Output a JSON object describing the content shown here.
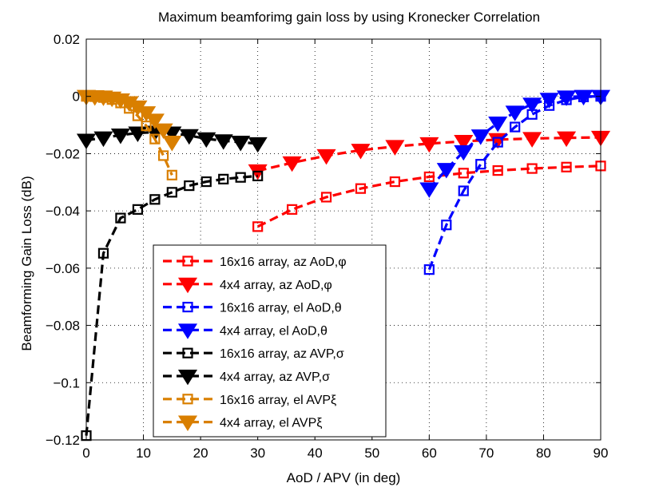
{
  "chart_data": {
    "type": "line",
    "title": "Maximum beamforimg gain loss by using Kronecker Correlation",
    "xlabel": "AoD / APV (in deg)",
    "ylabel": "Beamforming Gain Loss (dB)",
    "xlim": [
      0,
      90
    ],
    "ylim": [
      -0.12,
      0.02
    ],
    "xticks": [
      0,
      10,
      20,
      30,
      40,
      50,
      60,
      70,
      80,
      90
    ],
    "xtick_labels": [
      "0",
      "10",
      "20",
      "30",
      "40",
      "50",
      "60",
      "70",
      "80",
      "90"
    ],
    "yticks": [
      0.02,
      0,
      -0.02,
      -0.04,
      -0.06,
      -0.08,
      -0.1,
      -0.12
    ],
    "ytick_labels": [
      "0.02",
      "0",
      "−0.02",
      "−0.04",
      "−0.06",
      "−0.08",
      "−0.1",
      "−0.12"
    ],
    "grid": true,
    "legend_position": "lower-center",
    "series": [
      {
        "name": "16x16 array, az AoD,φ",
        "color": "#ff0000",
        "marker": "square",
        "x": [
          30,
          36,
          42,
          48,
          54,
          60,
          66,
          72,
          78,
          84,
          90
        ],
        "y": [
          -0.0455,
          -0.0395,
          -0.0352,
          -0.0322,
          -0.0298,
          -0.0281,
          -0.0268,
          -0.0259,
          -0.0252,
          -0.0247,
          -0.0243
        ]
      },
      {
        "name": "4x4 array, az AoD,φ",
        "color": "#ff0000",
        "marker": "triangle-down",
        "x": [
          30,
          36,
          42,
          48,
          54,
          60,
          66,
          72,
          78,
          84,
          90
        ],
        "y": [
          -0.026,
          -0.0232,
          -0.0207,
          -0.0188,
          -0.0175,
          -0.0165,
          -0.0157,
          -0.0151,
          -0.0147,
          -0.0145,
          -0.0143
        ]
      },
      {
        "name": "16x16 array, el AoD,θ",
        "color": "#0000ff",
        "marker": "square",
        "x": [
          60,
          63,
          66,
          69,
          72,
          75,
          78,
          81,
          84,
          87,
          90
        ],
        "y": [
          -0.0605,
          -0.0449,
          -0.033,
          -0.0237,
          -0.016,
          -0.0107,
          -0.0063,
          -0.0032,
          -0.0012,
          -0.0002,
          0.0
        ]
      },
      {
        "name": "4x4 array, el AoD,θ",
        "color": "#0000ff",
        "marker": "triangle-down",
        "x": [
          60,
          63,
          66,
          69,
          72,
          75,
          78,
          81,
          84,
          87,
          90
        ],
        "y": [
          -0.0323,
          -0.0255,
          -0.0193,
          -0.0138,
          -0.0093,
          -0.0055,
          -0.0027,
          -0.001,
          -0.0002,
          0.0,
          0.0
        ]
      },
      {
        "name": "16x16 array, az AVP,σ",
        "color": "#000000",
        "marker": "square",
        "x": [
          0,
          3,
          6,
          9,
          12,
          15,
          18,
          21,
          24,
          27,
          30
        ],
        "y": [
          -0.1185,
          -0.0548,
          -0.0425,
          -0.0395,
          -0.036,
          -0.0335,
          -0.0312,
          -0.0298,
          -0.0289,
          -0.0283,
          -0.0278
        ]
      },
      {
        "name": "4x4 array, az AVP,σ",
        "color": "#000000",
        "marker": "triangle-down",
        "x": [
          0,
          3,
          6,
          9,
          12,
          15,
          18,
          21,
          24,
          27,
          30
        ],
        "y": [
          -0.0153,
          -0.0145,
          -0.0135,
          -0.0128,
          -0.0125,
          -0.0128,
          -0.0137,
          -0.0148,
          -0.0155,
          -0.016,
          -0.0165
        ]
      },
      {
        "name": "16x16 array, el AVPξ",
        "color": "#d97f00",
        "marker": "square",
        "x": [
          0,
          1.5,
          3,
          4.5,
          6,
          7.5,
          9,
          10.5,
          12,
          13.5,
          15
        ],
        "y": [
          0.0,
          -0.0001,
          -0.0004,
          -0.0011,
          -0.0023,
          -0.0042,
          -0.0068,
          -0.0103,
          -0.0149,
          -0.0207,
          -0.0275
        ]
      },
      {
        "name": "4x4 array, el AVPξ",
        "color": "#d97f00",
        "marker": "triangle-down",
        "x": [
          0,
          1.5,
          3,
          4.5,
          6,
          7.5,
          9,
          10.5,
          12,
          13.5,
          15
        ],
        "y": [
          0.0,
          -0.0001,
          -0.0002,
          -0.0006,
          -0.0012,
          -0.0022,
          -0.0037,
          -0.0057,
          -0.0083,
          -0.0117,
          -0.016
        ]
      }
    ]
  }
}
